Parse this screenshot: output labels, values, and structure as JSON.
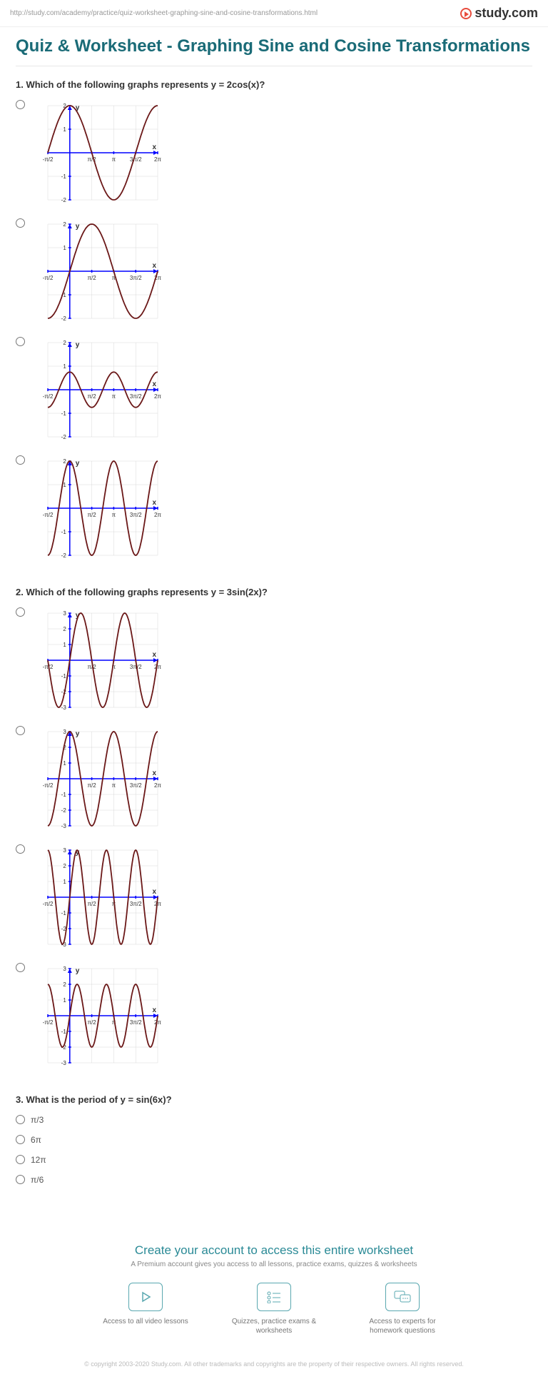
{
  "url": "http://study.com/academy/practice/quiz-worksheet-graphing-sine-and-cosine-transformations.html",
  "brand": "study.com",
  "title": "Quiz & Worksheet - Graphing Sine and Cosine Transformations",
  "colors": {
    "heading": "#1a6b77",
    "axis": "#0000ff",
    "curve": "#6b1818",
    "grid": "#d8d8d8",
    "teal": "#5aa8b0"
  },
  "graph_defaults": {
    "width": 184,
    "height": 156,
    "x_domain": [
      -1.5708,
      6.2832
    ],
    "x_ticks": [
      {
        "val": -1.5708,
        "label": "-π/2"
      },
      {
        "val": 1.5708,
        "label": "π/2"
      },
      {
        "val": 3.1416,
        "label": "π"
      },
      {
        "val": 4.7124,
        "label": "3π/2"
      },
      {
        "val": 6.2832,
        "label": "2π"
      }
    ]
  },
  "questions": [
    {
      "number": "1.",
      "text": "Which of the following graphs represents y = 2cos(x)?",
      "type": "graph",
      "options": [
        {
          "func": "cos",
          "amp": 2,
          "freq": 1,
          "y_range": 2,
          "y_step": 1
        },
        {
          "func": "sin",
          "amp": 2,
          "freq": 1,
          "y_range": 2,
          "y_step": 1
        },
        {
          "func": "cos",
          "amp": 0.75,
          "freq": 2,
          "y_range": 2,
          "y_step": 1
        },
        {
          "func": "cos",
          "amp": 2,
          "freq": 2,
          "y_range": 2,
          "y_step": 1
        }
      ]
    },
    {
      "number": "2.",
      "text": "Which of the following graphs represents y = 3sin(2x)?",
      "type": "graph",
      "options": [
        {
          "func": "sin",
          "amp": 3,
          "freq": 2,
          "y_range": 3,
          "y_step": 1
        },
        {
          "func": "cos",
          "amp": 3,
          "freq": 2,
          "y_range": 3,
          "y_step": 1
        },
        {
          "func": "sin",
          "amp": 3,
          "freq": 3,
          "y_range": 3,
          "y_step": 1
        },
        {
          "func": "sin",
          "amp": 2,
          "freq": 3,
          "y_range": 3,
          "y_step": 1
        }
      ]
    },
    {
      "number": "3.",
      "text": "What is the period of y = sin(6x)?",
      "type": "text",
      "options": [
        "π/3",
        "6π",
        "12π",
        "π/6"
      ]
    }
  ],
  "cta": {
    "title": "Create your account to access this entire worksheet",
    "subtitle": "A Premium account gives you access to all lessons, practice exams, quizzes & worksheets",
    "features": [
      "Access to all video lessons",
      "Quizzes, practice exams & worksheets",
      "Access to experts for homework questions"
    ]
  },
  "copyright": "© copyright 2003-2020 Study.com. All other trademarks and copyrights are the property of their respective owners. All rights reserved."
}
